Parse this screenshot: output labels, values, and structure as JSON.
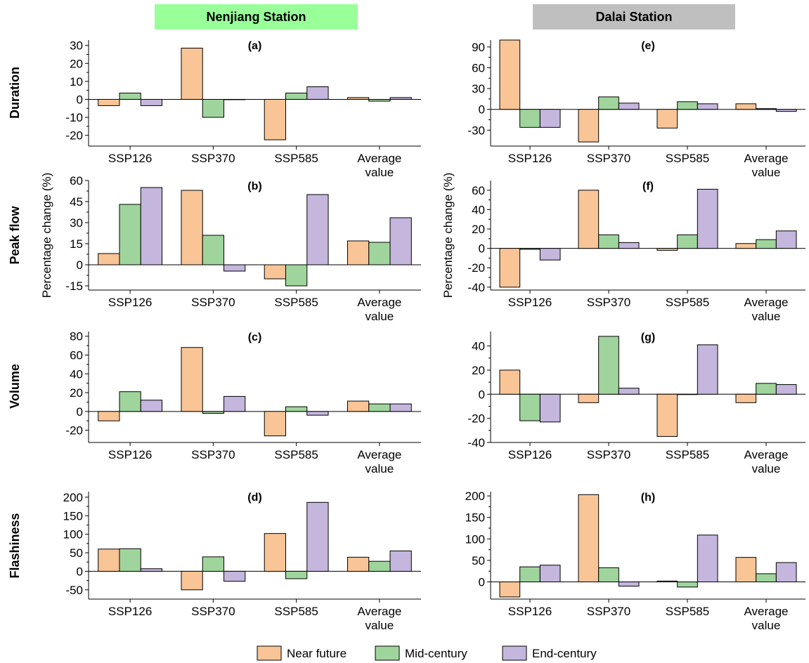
{
  "stations": [
    {
      "label": "Nenjiang Station",
      "bg": "#99ff99"
    },
    {
      "label": "Dalai Station",
      "bg": "#bfbfbf"
    }
  ],
  "row_labels": [
    "Duration",
    "Peak flow",
    "Volume",
    "Flashiness"
  ],
  "shared_ylabel": "Percentage change (%)",
  "legend": [
    {
      "name": "Near future",
      "color": "#f9c596"
    },
    {
      "name": "Mid-century",
      "color": "#9fd59c"
    },
    {
      "name": "End-century",
      "color": "#c4b6dd"
    }
  ],
  "chart_data": [
    {
      "type": "bar",
      "panel": "(a)",
      "categories": [
        "SSP126",
        "SSP370",
        "SSP585",
        "Average|value"
      ],
      "series": [
        {
          "name": "Near future",
          "values": [
            -3.5,
            28.5,
            -22.5,
            1
          ]
        },
        {
          "name": "Mid-century",
          "values": [
            3.5,
            -10,
            3.5,
            -1
          ]
        },
        {
          "name": "End-century",
          "values": [
            -3.5,
            0,
            7,
            1
          ]
        }
      ],
      "ylim": [
        -26,
        33
      ],
      "yticks": [
        -20,
        -10,
        0,
        10,
        20,
        30
      ]
    },
    {
      "type": "bar",
      "panel": "(b)",
      "categories": [
        "SSP126",
        "SSP370",
        "SSP585",
        "Average|value"
      ],
      "series": [
        {
          "name": "Near future",
          "values": [
            8,
            53,
            -10,
            17
          ]
        },
        {
          "name": "Mid-century",
          "values": [
            43,
            21,
            -15,
            16
          ]
        },
        {
          "name": "End-century",
          "values": [
            55,
            -4.5,
            50,
            33.5
          ]
        }
      ],
      "ylim": [
        -18,
        60
      ],
      "yticks": [
        -15,
        0,
        15,
        30,
        45,
        60
      ]
    },
    {
      "type": "bar",
      "panel": "(c)",
      "categories": [
        "SSP126",
        "SSP370",
        "SSP585",
        "Average|value"
      ],
      "series": [
        {
          "name": "Near future",
          "values": [
            -10,
            68,
            -26,
            11
          ]
        },
        {
          "name": "Mid-century",
          "values": [
            21,
            -2,
            5,
            8
          ]
        },
        {
          "name": "End-century",
          "values": [
            12,
            16,
            -4,
            8
          ]
        }
      ],
      "ylim": [
        -33,
        85
      ],
      "yticks": [
        -20,
        0,
        20,
        40,
        60,
        80
      ]
    },
    {
      "type": "bar",
      "panel": "(d)",
      "categories": [
        "SSP126",
        "SSP370",
        "SSP585",
        "Average|value"
      ],
      "series": [
        {
          "name": "Near future",
          "values": [
            60,
            -50,
            102,
            38
          ]
        },
        {
          "name": "Mid-century",
          "values": [
            61,
            39,
            -20,
            27
          ]
        },
        {
          "name": "End-century",
          "values": [
            7,
            -27,
            186,
            55
          ]
        }
      ],
      "ylim": [
        -75,
        215
      ],
      "yticks": [
        -50,
        0,
        50,
        100,
        150,
        200
      ]
    },
    {
      "type": "bar",
      "panel": "(e)",
      "categories": [
        "SSP126",
        "SSP370",
        "SSP585",
        "Average|value"
      ],
      "series": [
        {
          "name": "Near future",
          "values": [
            100,
            -47,
            -27,
            8
          ]
        },
        {
          "name": "Mid-century",
          "values": [
            -26,
            18,
            11,
            1
          ]
        },
        {
          "name": "End-century",
          "values": [
            -26,
            9,
            8,
            -3
          ]
        }
      ],
      "ylim": [
        -53,
        100
      ],
      "yticks": [
        -30,
        0,
        30,
        60,
        90
      ]
    },
    {
      "type": "bar",
      "panel": "(f)",
      "categories": [
        "SSP126",
        "SSP370",
        "SSP585",
        "Average|value"
      ],
      "series": [
        {
          "name": "Near future",
          "values": [
            -40,
            60,
            -2,
            5
          ]
        },
        {
          "name": "Mid-century",
          "values": [
            -1,
            14,
            14,
            9
          ]
        },
        {
          "name": "End-century",
          "values": [
            -12,
            6,
            61,
            18
          ]
        }
      ],
      "ylim": [
        -43,
        70
      ],
      "yticks": [
        -40,
        -20,
        0,
        20,
        40,
        60
      ]
    },
    {
      "type": "bar",
      "panel": "(g)",
      "categories": [
        "SSP126",
        "SSP370",
        "SSP585",
        "Average|value"
      ],
      "series": [
        {
          "name": "Near future",
          "values": [
            20,
            -7,
            -35,
            -7
          ]
        },
        {
          "name": "Mid-century",
          "values": [
            -22,
            48,
            0,
            9
          ]
        },
        {
          "name": "End-century",
          "values": [
            -23,
            5,
            41,
            8
          ]
        }
      ],
      "ylim": [
        -40,
        52
      ],
      "yticks": [
        -40,
        -20,
        0,
        20,
        40
      ]
    },
    {
      "type": "bar",
      "panel": "(h)",
      "categories": [
        "SSP126",
        "SSP370",
        "SSP585",
        "Average|value"
      ],
      "series": [
        {
          "name": "Near future",
          "values": [
            -35,
            203,
            2,
            57
          ]
        },
        {
          "name": "Mid-century",
          "values": [
            35,
            33,
            -12,
            19
          ]
        },
        {
          "name": "End-century",
          "values": [
            39,
            -10,
            109,
            45
          ]
        }
      ],
      "ylim": [
        -40,
        210
      ],
      "yticks": [
        0,
        50,
        100,
        150,
        200
      ]
    }
  ]
}
